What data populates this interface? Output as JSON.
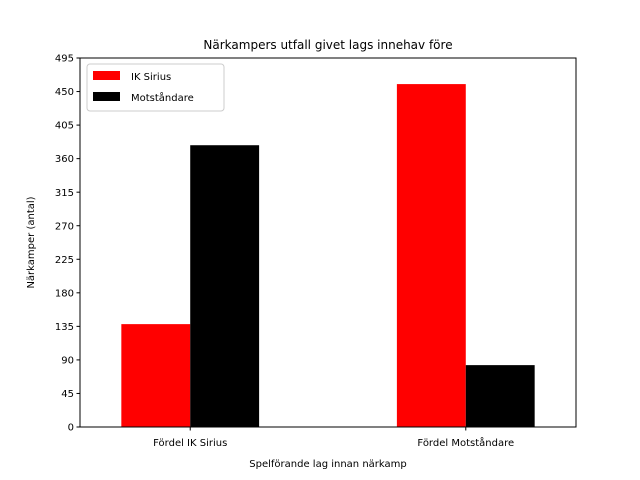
{
  "chart_data": {
    "type": "bar",
    "title": "Närkampers utfall givet lags innehav före",
    "xlabel": "Spelförande lag innan närkamp",
    "ylabel": "Närkamper (antal)",
    "categories": [
      "Fördel IK Sirius",
      "Fördel Motståndare"
    ],
    "series": [
      {
        "name": "IK Sirius",
        "color": "#ff0000",
        "values": [
          138,
          460
        ]
      },
      {
        "name": "Motståndare",
        "color": "#000000",
        "values": [
          378,
          83
        ]
      }
    ],
    "ylim": [
      0,
      495
    ],
    "yticks": [
      0,
      45,
      90,
      135,
      180,
      225,
      270,
      315,
      360,
      405,
      450,
      495
    ],
    "grid": false,
    "legend_position": "top-left"
  }
}
